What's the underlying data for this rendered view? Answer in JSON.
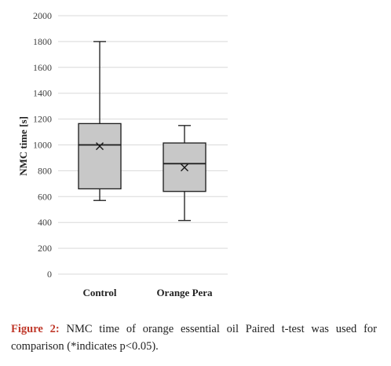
{
  "chart_data": {
    "type": "boxplot",
    "ylabel": "NMC time [s]",
    "xlabel": "",
    "ylim": [
      0,
      2000
    ],
    "yticks": [
      0,
      200,
      400,
      600,
      800,
      1000,
      1200,
      1400,
      1600,
      1800,
      2000
    ],
    "grid": true,
    "categories": [
      "Control",
      "Orange Pera"
    ],
    "boxes": [
      {
        "category": "Control",
        "min": 570,
        "q1": 660,
        "median": 1000,
        "q3": 1165,
        "max": 1800,
        "mean": 990
      },
      {
        "category": "Orange Pera",
        "min": 415,
        "q1": 640,
        "median": 855,
        "q3": 1015,
        "max": 1150,
        "mean": 825
      }
    ],
    "colors": {
      "box_fill": "#c8c8c8",
      "stroke": "#1a1a1a",
      "grid": "#d9d9d9"
    }
  },
  "caption": {
    "label": "Figure 2:",
    "text": " NMC time of orange essential oil Paired t-test was used for comparison (*indicates p<0.05)."
  }
}
